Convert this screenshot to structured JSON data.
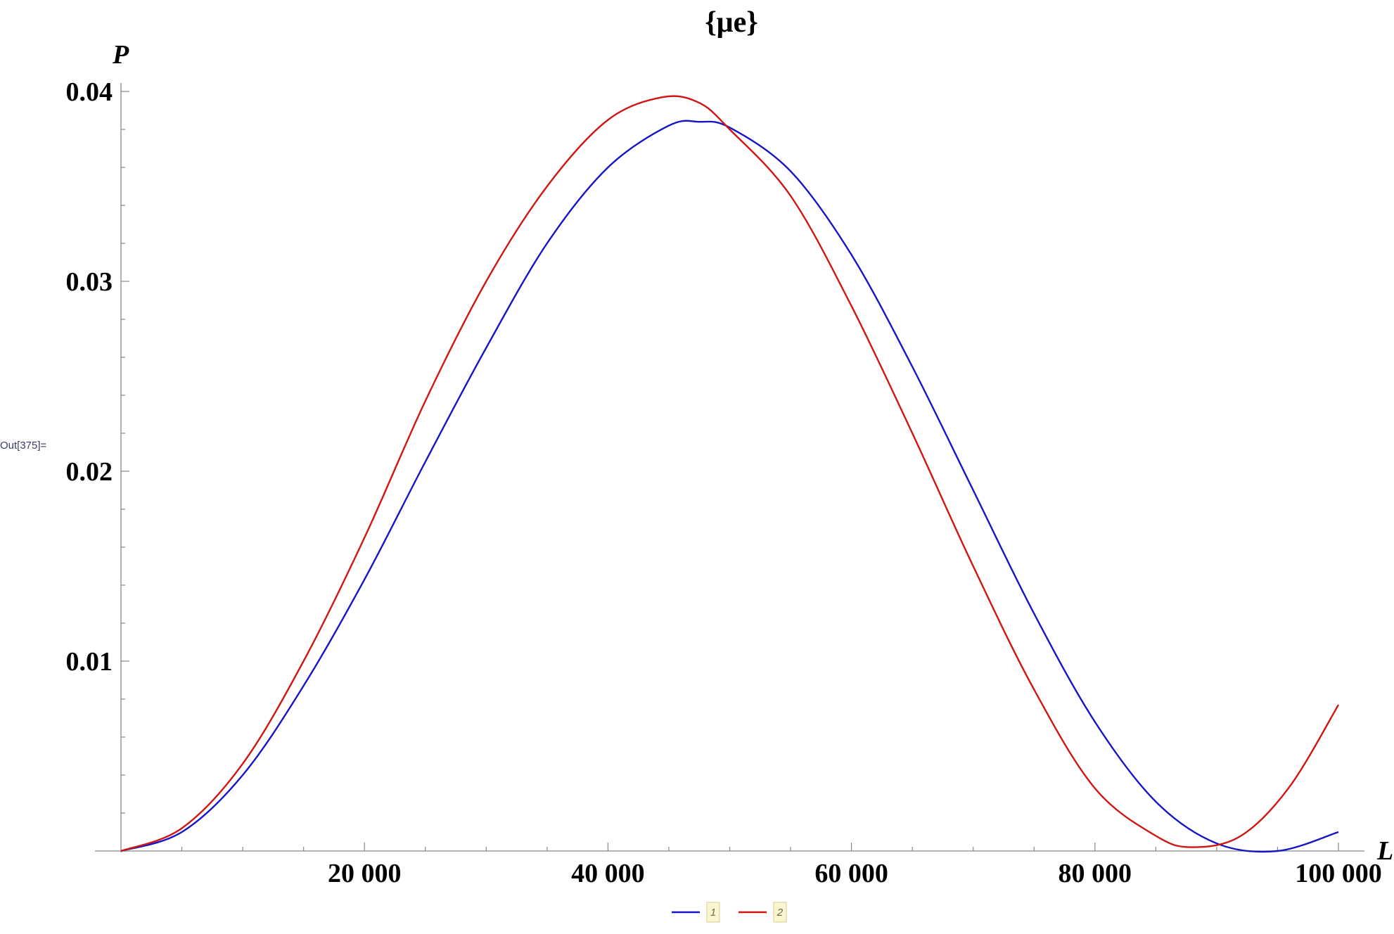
{
  "cell": {
    "out_label": "Out[375]="
  },
  "chart_data": {
    "type": "line",
    "title": "{μe}",
    "xlabel": "L",
    "ylabel": "P",
    "xlim": [
      0,
      100000
    ],
    "ylim": [
      0,
      0.04
    ],
    "x_ticks": [
      {
        "value": 20000,
        "label": "20 000"
      },
      {
        "value": 40000,
        "label": "40 000"
      },
      {
        "value": 60000,
        "label": "60 000"
      },
      {
        "value": 80000,
        "label": "80 000"
      },
      {
        "value": 100000,
        "label": "100 000"
      }
    ],
    "y_ticks": [
      {
        "value": 0.01,
        "label": "0.01"
      },
      {
        "value": 0.02,
        "label": "0.02"
      },
      {
        "value": 0.03,
        "label": "0.03"
      },
      {
        "value": 0.04,
        "label": "0.04"
      }
    ],
    "legend_position": "bottom-center",
    "series": [
      {
        "name": "1",
        "color": "#1515c8",
        "x": [
          0,
          5000,
          10000,
          15000,
          20000,
          25000,
          30000,
          35000,
          40000,
          45000,
          47500,
          50000,
          55000,
          60000,
          65000,
          70000,
          75000,
          80000,
          85000,
          90000,
          95000,
          100000
        ],
        "y": [
          0,
          0.001,
          0.004,
          0.0087,
          0.0143,
          0.0205,
          0.0265,
          0.032,
          0.036,
          0.0382,
          0.0384,
          0.0381,
          0.0358,
          0.0314,
          0.0255,
          0.019,
          0.0125,
          0.0068,
          0.0026,
          0.0004,
          0.0,
          0.001
        ]
      },
      {
        "name": "2",
        "color": "#d01515",
        "x": [
          0,
          5000,
          10000,
          15000,
          20000,
          25000,
          30000,
          35000,
          40000,
          44500,
          47500,
          50000,
          55000,
          60000,
          65000,
          70000,
          75000,
          80000,
          85000,
          88000,
          92000,
          96000,
          100000
        ],
        "y": [
          0,
          0.0012,
          0.0046,
          0.01,
          0.0165,
          0.0237,
          0.03,
          0.035,
          0.0385,
          0.0397,
          0.0394,
          0.038,
          0.0345,
          0.0287,
          0.022,
          0.015,
          0.0085,
          0.0033,
          0.0008,
          0.0002,
          0.0008,
          0.0034,
          0.0077
        ]
      }
    ]
  }
}
